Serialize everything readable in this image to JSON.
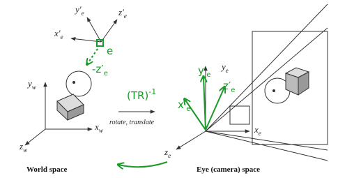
{
  "top_axes": {
    "y": {
      "main": "y′",
      "sub": "e"
    },
    "z": {
      "main": "z′",
      "sub": "e"
    },
    "x": {
      "main": "x′",
      "sub": "e"
    },
    "point": "e",
    "view_dir": {
      "main": "-z′",
      "sub": "e"
    }
  },
  "world_axes": {
    "y": {
      "main": "y",
      "sub": "w"
    },
    "x": {
      "main": "x",
      "sub": "w"
    },
    "z": {
      "main": "z",
      "sub": "w"
    }
  },
  "transform": {
    "matrix": "(TR)",
    "exponent": "-1",
    "caption": "rotate, translate"
  },
  "eye_axes": {
    "y": {
      "main": "y",
      "sub": "e"
    },
    "x": {
      "main": "x",
      "sub": "e"
    },
    "z": {
      "main": "z",
      "sub": "e"
    }
  },
  "eye_green_axes": {
    "x": {
      "main": "x′",
      "sub": "e"
    },
    "y": {
      "main": "y′",
      "sub": "e"
    },
    "z": {
      "main": "z′",
      "sub": "e"
    }
  },
  "captions": {
    "world": "World space",
    "eye": "Eye (camera) space"
  }
}
